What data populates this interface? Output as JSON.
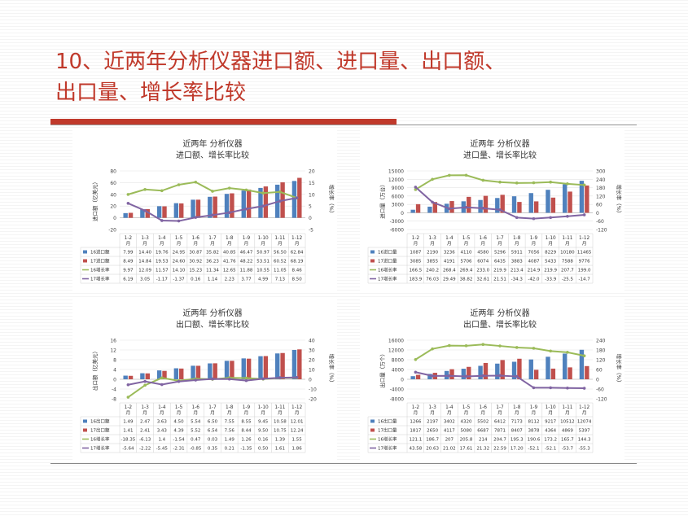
{
  "slide": {
    "title_line1": "10、近两年分析仪器进口额、进口量、出口额、",
    "title_line2": "出口量、增长率比较"
  },
  "colors": {
    "s16": "#4f81bd",
    "s17": "#c0504d",
    "g16": "#9bbb59",
    "g17": "#8064a2",
    "accent": "#c0392b"
  },
  "chart_data": [
    {
      "type": "bar",
      "title": "近两年 分析仪器",
      "subtitle": "进口额、增长率比较",
      "ylabel": "进口额（亿美元）",
      "y2label": "增长率（%）",
      "categories": [
        "1-2月",
        "1-3月",
        "1-4月",
        "1-5月",
        "1-6月",
        "1-7月",
        "1-8月",
        "1-9月",
        "1-10月",
        "1-11月",
        "1-12月"
      ],
      "ylim": [
        -20,
        80
      ],
      "yticks": [
        -20,
        0,
        20,
        40,
        60,
        80
      ],
      "y2lim": [
        -5,
        20
      ],
      "y2ticks": [
        -5,
        0,
        5,
        10,
        15,
        20
      ],
      "bars": [
        {
          "name": "16进口额",
          "labels": [
            "7.99",
            "14.40",
            "19.76",
            "24.95",
            "30.87",
            "35.82",
            "40.85",
            "46.47",
            "50.97",
            "56.50",
            "62.84"
          ],
          "values": [
            7.99,
            14.4,
            19.76,
            24.95,
            30.87,
            35.82,
            40.85,
            46.47,
            50.97,
            56.5,
            62.84
          ]
        },
        {
          "name": "17进口额",
          "labels": [
            "8.49",
            "14.84",
            "19.53",
            "24.60",
            "30.92",
            "36.23",
            "41.76",
            "48.22",
            "53.51",
            "60.52",
            "68.19"
          ],
          "values": [
            8.49,
            14.84,
            19.53,
            24.6,
            30.92,
            36.23,
            41.76,
            48.22,
            53.51,
            60.52,
            68.19
          ]
        }
      ],
      "lines": [
        {
          "name": "16增长率",
          "labels": [
            "9.97",
            "12.09",
            "11.57",
            "14.10",
            "15.23",
            "11.34",
            "12.65",
            "11.88",
            "10.55",
            "11.05",
            "8.46"
          ],
          "values": [
            9.97,
            12.09,
            11.57,
            14.1,
            15.23,
            11.34,
            12.65,
            11.88,
            10.55,
            11.05,
            8.46
          ]
        },
        {
          "name": "17增长率",
          "labels": [
            "6.19",
            "3.05",
            "-1.17",
            "-1.37",
            "0.16",
            "1.14",
            "2.23",
            "3.77",
            "4.99",
            "7.13",
            "8.50"
          ],
          "values": [
            6.19,
            3.05,
            -1.17,
            -1.37,
            0.16,
            1.14,
            2.23,
            3.77,
            4.99,
            7.13,
            8.5
          ]
        }
      ]
    },
    {
      "type": "bar",
      "title": "近两年 分析仪器",
      "subtitle": "进口量、增长率比较",
      "ylabel": "进口量（万台）",
      "y2label": "增长率（%）",
      "categories": [
        "1-2月",
        "1-3月",
        "1-4月",
        "1-5月",
        "1-6月",
        "1-7月",
        "1-8月",
        "1-9月",
        "1-10月",
        "1-11月",
        "1-12月"
      ],
      "ylim": [
        -6000,
        15000
      ],
      "yticks": [
        -6000,
        -3000,
        0,
        3000,
        6000,
        9000,
        12000,
        15000
      ],
      "y2lim": [
        -120,
        300
      ],
      "y2ticks": [
        -120,
        -60,
        0,
        60,
        120,
        180,
        240,
        300
      ],
      "bars": [
        {
          "name": "16进口量",
          "labels": [
            "1087",
            "2190",
            "3236",
            "4110",
            "4580",
            "5296",
            "5911",
            "7056",
            "8229",
            "10180",
            "11465"
          ],
          "values": [
            1087,
            2190,
            3236,
            4110,
            4580,
            5296,
            5911,
            7056,
            8229,
            10180,
            11465
          ]
        },
        {
          "name": "17进口量",
          "labels": [
            "3085",
            "3855",
            "4191",
            "5706",
            "6074",
            "6435",
            "3883",
            "4087",
            "5433",
            "7588",
            "9776"
          ],
          "values": [
            3085,
            3855,
            4191,
            5706,
            6074,
            6435,
            3883,
            4087,
            5433,
            7588,
            9776
          ]
        }
      ],
      "lines": [
        {
          "name": "16增长率",
          "labels": [
            "166.5",
            "240.2",
            "268.4",
            "269.4",
            "233.0",
            "219.9",
            "213.4",
            "214.9",
            "219.9",
            "207.7",
            "199.0"
          ],
          "values": [
            166.5,
            240.2,
            268.4,
            269.4,
            233.0,
            219.9,
            213.4,
            214.9,
            219.9,
            207.7,
            199.0
          ]
        },
        {
          "name": "17增长率",
          "labels": [
            "183.9",
            "76.03",
            "29.49",
            "38.82",
            "32.61",
            "21.51",
            "-34.3",
            "-42.0",
            "-33.9",
            "-25.5",
            "-14.7"
          ],
          "values": [
            183.9,
            76.03,
            29.49,
            38.82,
            32.61,
            21.51,
            -34.3,
            -42.0,
            -33.9,
            -25.5,
            -14.7
          ]
        }
      ]
    },
    {
      "type": "bar",
      "title": "近两年 分析仪器",
      "subtitle": "出口额、增长率比较",
      "ylabel": "出口额（亿美元）",
      "y2label": "增长率（%）",
      "categories": [
        "1-2月",
        "1-3月",
        "1-4月",
        "1-5月",
        "1-6月",
        "1-7月",
        "1-8月",
        "1-9月",
        "1-10月",
        "1-11月",
        "1-12月"
      ],
      "ylim": [
        -8,
        16
      ],
      "yticks": [
        -8,
        -4,
        0,
        4,
        8,
        12,
        16
      ],
      "y2lim": [
        -20,
        40
      ],
      "y2ticks": [
        -20,
        -10,
        0,
        10,
        20,
        30,
        40
      ],
      "bars": [
        {
          "name": "16出口额",
          "labels": [
            "1.49",
            "2.47",
            "3.63",
            "4.50",
            "5.54",
            "6.50",
            "7.55",
            "8.55",
            "9.45",
            "10.58",
            "12.01"
          ],
          "values": [
            1.49,
            2.47,
            3.63,
            4.5,
            5.54,
            6.5,
            7.55,
            8.55,
            9.45,
            10.58,
            12.01
          ]
        },
        {
          "name": "17出口额",
          "labels": [
            "1.41",
            "2.41",
            "3.43",
            "4.39",
            "5.52",
            "6.54",
            "7.56",
            "8.44",
            "9.50",
            "10.75",
            "12.24"
          ],
          "values": [
            1.41,
            2.41,
            3.43,
            4.39,
            5.52,
            6.54,
            7.56,
            8.44,
            9.5,
            10.75,
            12.24
          ]
        }
      ],
      "lines": [
        {
          "name": "16增长率",
          "labels": [
            "-18.35",
            "-6.13",
            "1.4",
            "-1.54",
            "0.47",
            "0.03",
            "1.49",
            "1.26",
            "0.16",
            "1.39",
            "1.55"
          ],
          "values": [
            -18.35,
            -6.13,
            1.4,
            -1.54,
            0.47,
            0.03,
            1.49,
            1.26,
            0.16,
            1.39,
            1.55
          ]
        },
        {
          "name": "17增长率",
          "labels": [
            "-5.64",
            "-2.22",
            "-5.45",
            "-2.31",
            "-0.85",
            "0.35",
            "0.21",
            "-1.35",
            "0.50",
            "1.61",
            "1.86"
          ],
          "values": [
            -5.64,
            -2.22,
            -5.45,
            -2.31,
            -0.85,
            0.35,
            0.21,
            -1.35,
            0.5,
            1.61,
            1.86
          ]
        }
      ]
    },
    {
      "type": "bar",
      "title": "近两年 分析仪器",
      "subtitle": "出口量、增长率比较",
      "ylabel": "出口量（万个）",
      "y2label": "增长率（%）",
      "categories": [
        "1-2月",
        "1-3月",
        "1-4月",
        "1-5月",
        "1-6月",
        "1-7月",
        "1-8月",
        "1-9月",
        "1-10月",
        "1-11月",
        "1-12月"
      ],
      "ylim": [
        -8000,
        16000
      ],
      "yticks": [
        -8000,
        -4000,
        0,
        4000,
        8000,
        12000,
        16000
      ],
      "y2lim": [
        -120,
        240
      ],
      "y2ticks": [
        -120,
        -60,
        0,
        60,
        120,
        180,
        240
      ],
      "bars": [
        {
          "name": "16出口量",
          "labels": [
            "1266",
            "2197",
            "3402",
            "4320",
            "5502",
            "6412",
            "7173",
            "8112",
            "9217",
            "10512",
            "12074"
          ],
          "values": [
            1266,
            2197,
            3402,
            4320,
            5502,
            6412,
            7173,
            8112,
            9217,
            10512,
            12074
          ]
        },
        {
          "name": "17出口量",
          "labels": [
            "1817",
            "2650",
            "4117",
            "5080",
            "6687",
            "7871",
            "8407",
            "3878",
            "4364",
            "4869",
            "5397"
          ],
          "values": [
            1817,
            2650,
            4117,
            5080,
            6687,
            7871,
            8407,
            3878,
            4364,
            4869,
            5397
          ]
        }
      ],
      "lines": [
        {
          "name": "16增长率",
          "labels": [
            "121.1",
            "186.7",
            "207",
            "205.8",
            "214",
            "204.7",
            "195.3",
            "190.6",
            "173.2",
            "165.7",
            "144.3"
          ],
          "values": [
            121.1,
            186.7,
            207,
            205.8,
            214,
            204.7,
            195.3,
            190.6,
            173.2,
            165.7,
            144.3
          ]
        },
        {
          "name": "17增长率",
          "labels": [
            "43.58",
            "20.63",
            "21.02",
            "17.61",
            "21.32",
            "22.59",
            "17.20",
            "-52.1",
            "-52.1",
            "-53.7",
            "-55.3"
          ],
          "values": [
            43.58,
            20.63,
            21.02,
            17.61,
            21.32,
            22.59,
            17.2,
            -52.1,
            -52.1,
            -53.7,
            -55.3
          ]
        }
      ]
    }
  ]
}
